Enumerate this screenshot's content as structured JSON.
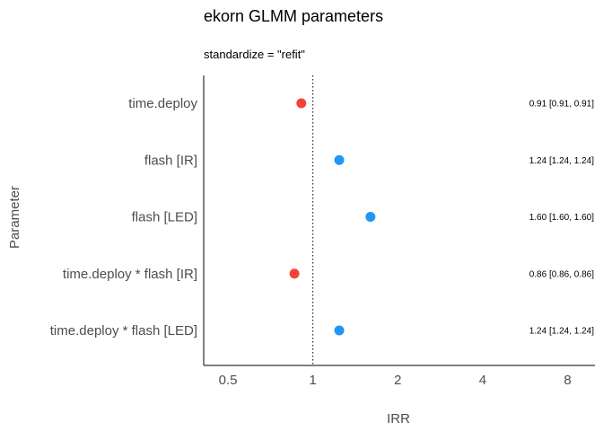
{
  "chart_data": {
    "type": "scatter",
    "title": "ekorn GLMM parameters",
    "subtitle": "standardize  = \"refit\"",
    "xlabel": "IRR",
    "ylabel": "Parameter",
    "x_scale": "log2",
    "xlim": [
      0.41,
      10
    ],
    "x_ticks": [
      "0.5",
      "1",
      "2",
      "4",
      "8"
    ],
    "reference_line": 1,
    "colors": {
      "negative": "#f44336",
      "positive": "#2196f3"
    },
    "parameters": [
      {
        "name": "time.deploy",
        "value": 0.91,
        "ci": [
          0.91,
          0.91
        ],
        "label": "0.91 [0.91, 0.91]"
      },
      {
        "name": "flash [IR]",
        "value": 1.24,
        "ci": [
          1.24,
          1.24
        ],
        "label": "1.24 [1.24, 1.24]"
      },
      {
        "name": "flash [LED]",
        "value": 1.6,
        "ci": [
          1.6,
          1.6
        ],
        "label": "1.60 [1.60, 1.60]"
      },
      {
        "name": "time.deploy * flash [IR]",
        "value": 0.86,
        "ci": [
          0.86,
          0.86
        ],
        "label": "0.86 [0.86, 0.86]"
      },
      {
        "name": "time.deploy * flash [LED]",
        "value": 1.24,
        "ci": [
          1.24,
          1.24
        ],
        "label": "1.24 [1.24, 1.24]"
      }
    ]
  }
}
